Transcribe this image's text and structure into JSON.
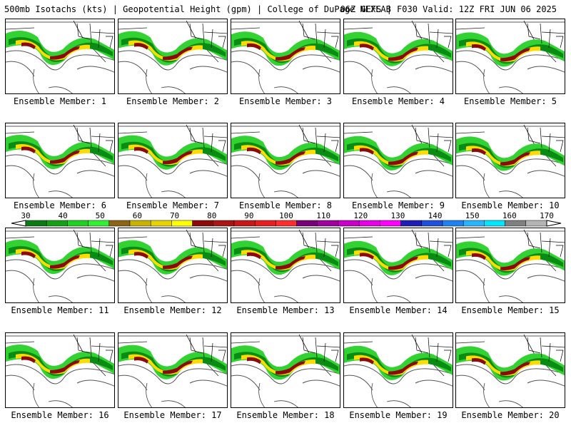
{
  "header": {
    "title": "500mb Isotachs (kts) | Geopotential Height (gpm) | College of DuPage NEXLAB",
    "run_info": "06Z GEFS | F030 Valid: 12Z FRI JUN 06 2025"
  },
  "members": [
    {
      "label": "Ensemble Member: 1"
    },
    {
      "label": "Ensemble Member: 2"
    },
    {
      "label": "Ensemble Member: 3"
    },
    {
      "label": "Ensemble Member: 4"
    },
    {
      "label": "Ensemble Member: 5"
    },
    {
      "label": "Ensemble Member: 6"
    },
    {
      "label": "Ensemble Member: 7"
    },
    {
      "label": "Ensemble Member: 8"
    },
    {
      "label": "Ensemble Member: 9"
    },
    {
      "label": "Ensemble Member: 10"
    },
    {
      "label": "Ensemble Member: 11"
    },
    {
      "label": "Ensemble Member: 12"
    },
    {
      "label": "Ensemble Member: 13"
    },
    {
      "label": "Ensemble Member: 14"
    },
    {
      "label": "Ensemble Member: 15"
    },
    {
      "label": "Ensemble Member: 16"
    },
    {
      "label": "Ensemble Member: 17"
    },
    {
      "label": "Ensemble Member: 18"
    },
    {
      "label": "Ensemble Member: 19"
    },
    {
      "label": "Ensemble Member: 20"
    }
  ],
  "colorbar": {
    "labels": [
      "30",
      "40",
      "50",
      "60",
      "70",
      "80",
      "90",
      "100",
      "110",
      "120",
      "130",
      "140",
      "150",
      "160",
      "170"
    ],
    "colors": [
      "#0a7a14",
      "#14a014",
      "#1fd21f",
      "#32f032",
      "#8c6414",
      "#c8b400",
      "#e6d200",
      "#ffff00",
      "#8c0a0a",
      "#aa1414",
      "#c81919",
      "#e61e1e",
      "#ff2d2d",
      "#780078",
      "#a000a0",
      "#c800c8",
      "#e600e6",
      "#ff00ff",
      "#1e1eb4",
      "#1e50dc",
      "#1e82f0",
      "#28b4ff",
      "#00e6ff",
      "#808080",
      "#b4b4b4"
    ]
  },
  "map_colors": {
    "light_green": "#32d232",
    "dark_green": "#0a8c14",
    "yellow": "#ffdc00",
    "dark_red": "#8c0a0a",
    "border": "#000000",
    "height_contour": "#555555"
  }
}
